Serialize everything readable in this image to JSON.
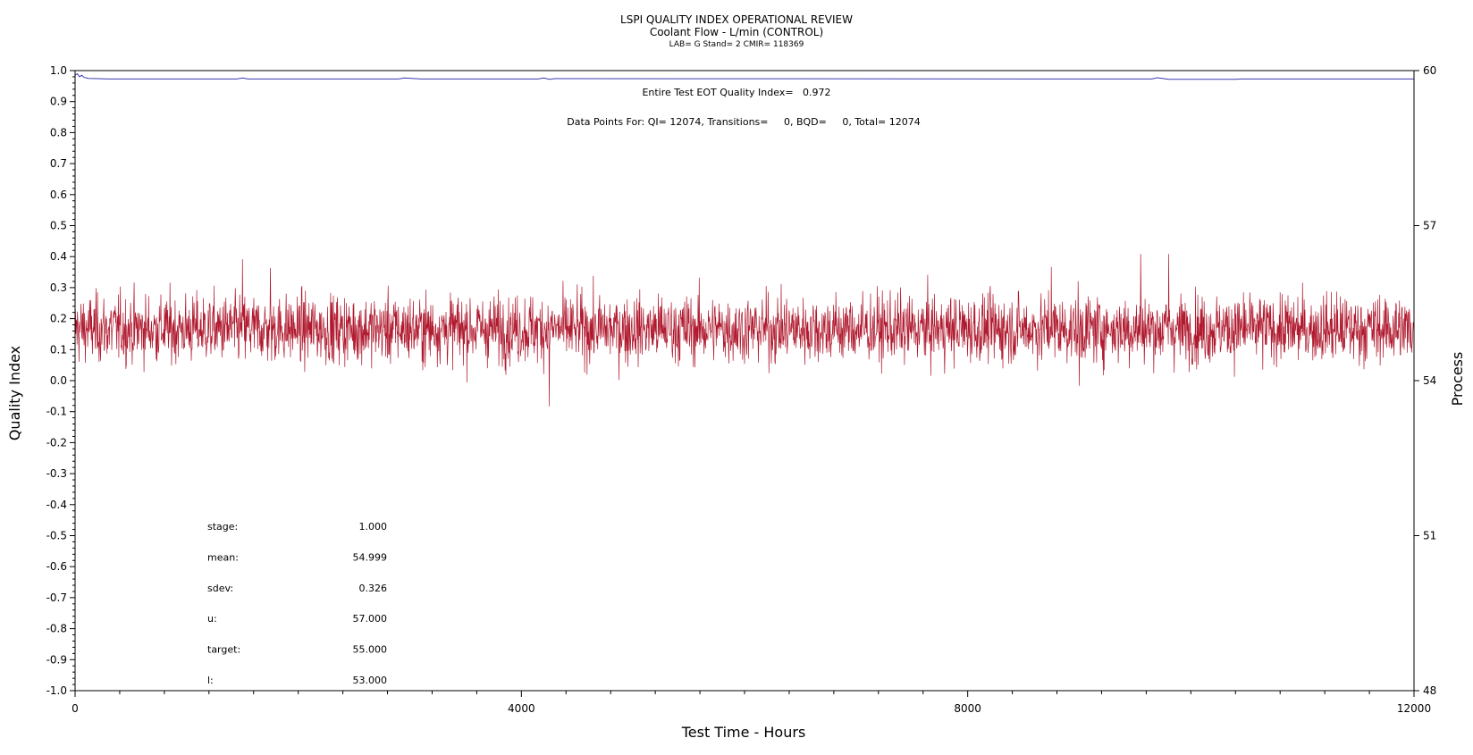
{
  "header": {
    "title": "LSPI QUALITY INDEX OPERATIONAL REVIEW",
    "subtitle": "Coolant Flow - L/min (CONTROL)",
    "info": "LAB= G Stand= 2 CMIR= 118369"
  },
  "annotations": {
    "eot": "Entire Test EOT Quality Index=   0.972",
    "points": "Data Points For: QI= 12074, Transitions=     0, BQD=     0, Total= 12074"
  },
  "stats": [
    {
      "label": "stage:",
      "value": "1.000"
    },
    {
      "label": "mean:",
      "value": "54.999"
    },
    {
      "label": "sdev:",
      "value": "0.326"
    },
    {
      "label": "u:",
      "value": "57.000"
    },
    {
      "label": "target:",
      "value": "55.000"
    },
    {
      "label": "l:",
      "value": "53.000"
    }
  ],
  "chart_data": {
    "type": "line",
    "title": "LSPI QUALITY INDEX OPERATIONAL REVIEW",
    "subtitle": "Coolant Flow - L/min (CONTROL)",
    "xlabel": "Test Time - Hours",
    "ylabel": "Quality Index",
    "y2label": "Process",
    "xlim": [
      0,
      12000
    ],
    "ylim": [
      -1.0,
      1.0
    ],
    "y2lim": [
      48,
      60
    ],
    "x_ticks": [
      0,
      4000,
      8000,
      12000
    ],
    "y_ticks": [
      -1.0,
      -0.9,
      -0.8,
      -0.7,
      -0.6,
      -0.5,
      -0.4,
      -0.3,
      -0.2,
      -0.1,
      0.0,
      0.1,
      0.2,
      0.3,
      0.4,
      0.5,
      0.6,
      0.7,
      0.8,
      0.9,
      1.0
    ],
    "y_tick_labels": [
      "-1.0",
      "-0.9",
      "-0.8",
      "-0.7",
      "-0.6",
      "-0.5",
      "-0.4",
      "-0.3",
      "-0.2",
      "-0.1",
      "0.0",
      "0.1",
      "0.2",
      "0.3",
      "0.4",
      "0.5",
      "0.6",
      "0.7",
      "0.8",
      "0.9",
      "1.0"
    ],
    "y2_ticks": [
      48,
      51,
      54,
      57,
      60
    ],
    "grid": false,
    "series": [
      {
        "role": "quality-index",
        "axis": "left",
        "color": "#3a3ab0",
        "x": [
          0,
          20,
          40,
          60,
          80,
          120,
          200,
          300,
          1450,
          1500,
          1550,
          2900,
          2950,
          3100,
          4150,
          4200,
          4250,
          4300,
          9650,
          9700,
          9800,
          10400,
          10450,
          12000
        ],
        "y": [
          0.985,
          0.99,
          0.98,
          0.985,
          0.978,
          0.975,
          0.974,
          0.973,
          0.973,
          0.976,
          0.973,
          0.973,
          0.976,
          0.973,
          0.973,
          0.976,
          0.972,
          0.974,
          0.973,
          0.977,
          0.972,
          0.972,
          0.973,
          0.973
        ]
      },
      {
        "role": "process",
        "axis": "right",
        "color": "#b0192e",
        "x_start": 0,
        "x_end": 12000,
        "mean": 54.999,
        "sdev": 0.326,
        "peaks_x": [
          1500,
          1750,
          4250,
          8750,
          9000,
          9550,
          9800
        ],
        "peaks_y": [
          56.35,
          56.18,
          53.5,
          56.2,
          53.9,
          56.45,
          56.45
        ]
      }
    ]
  }
}
